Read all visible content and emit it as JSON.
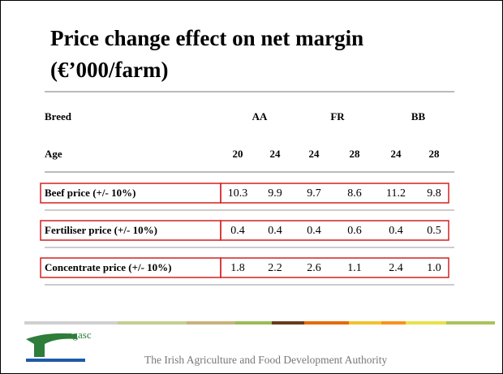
{
  "title": [
    "Price change effect on net margin",
    "(€’000/farm)"
  ],
  "table": {
    "breed_label": "Breed",
    "breeds": [
      "AA",
      "FR",
      "BB"
    ],
    "age_label": "Age",
    "ages": [
      "20",
      "24",
      "24",
      "28",
      "24",
      "28"
    ],
    "rows": [
      {
        "label": "Beef price (+/- 10%)",
        "values": [
          "10.3",
          "9.9",
          "9.7",
          "8.6",
          "11.2",
          "9.8"
        ]
      },
      {
        "label": "Fertiliser price (+/- 10%)",
        "values": [
          "0.4",
          "0.4",
          "0.4",
          "0.6",
          "0.4",
          "0.5"
        ]
      },
      {
        "label": "Concentrate price (+/- 10%)",
        "values": [
          "1.8",
          "2.2",
          "2.6",
          "1.1",
          "2.4",
          "1.0"
        ]
      }
    ]
  },
  "footer": {
    "logo": "eagasc",
    "tagline": "The Irish Agriculture and Food Development Authority"
  }
}
